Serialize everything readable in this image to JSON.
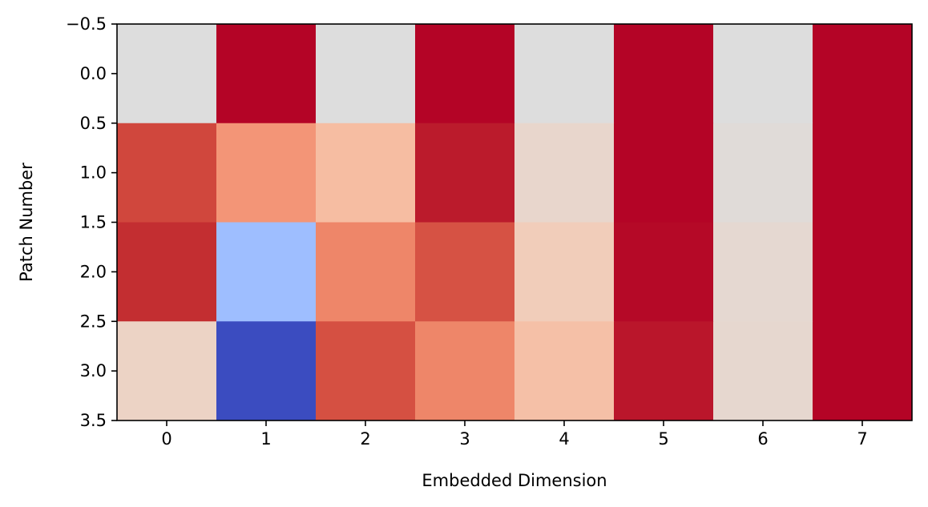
{
  "chart_data": {
    "type": "heatmap",
    "title": "",
    "xlabel": "Embedded Dimension",
    "ylabel": "Patch Number",
    "colormap": "coolwarm",
    "grid": false,
    "legend": "none",
    "x_categories": [
      "0",
      "1",
      "2",
      "3",
      "4",
      "5",
      "6",
      "7"
    ],
    "y_categories": [
      "0",
      "1",
      "2",
      "3"
    ],
    "x_ticks": [
      "0",
      "1",
      "2",
      "3",
      "4",
      "5",
      "6",
      "7"
    ],
    "y_ticks": [
      "−0.5",
      "0.0",
      "0.5",
      "1.0",
      "1.5",
      "2.0",
      "2.5",
      "3.0",
      "3.5"
    ],
    "xlim": [
      -0.5,
      7.5
    ],
    "ylim": [
      3.5,
      -0.5
    ],
    "colors": [
      [
        "#dddddd",
        "#b40426",
        "#dddddd",
        "#b40426",
        "#dddddd",
        "#b40426",
        "#dddddd",
        "#b40426"
      ],
      [
        "#d0473d",
        "#f39577",
        "#f6bda2",
        "#bb1b2c",
        "#e8d6cc",
        "#b40426",
        "#e0dbd8",
        "#b40426"
      ],
      [
        "#c32e31",
        "#9ebeff",
        "#ee8669",
        "#d65244",
        "#f1cdba",
        "#b50927",
        "#e5d8d1",
        "#b40426"
      ],
      [
        "#ecd3c5",
        "#3b4cc0",
        "#d55042",
        "#ee8669",
        "#f5c0a7",
        "#ba162b",
        "#e6d7cf",
        "#b40426"
      ]
    ]
  }
}
